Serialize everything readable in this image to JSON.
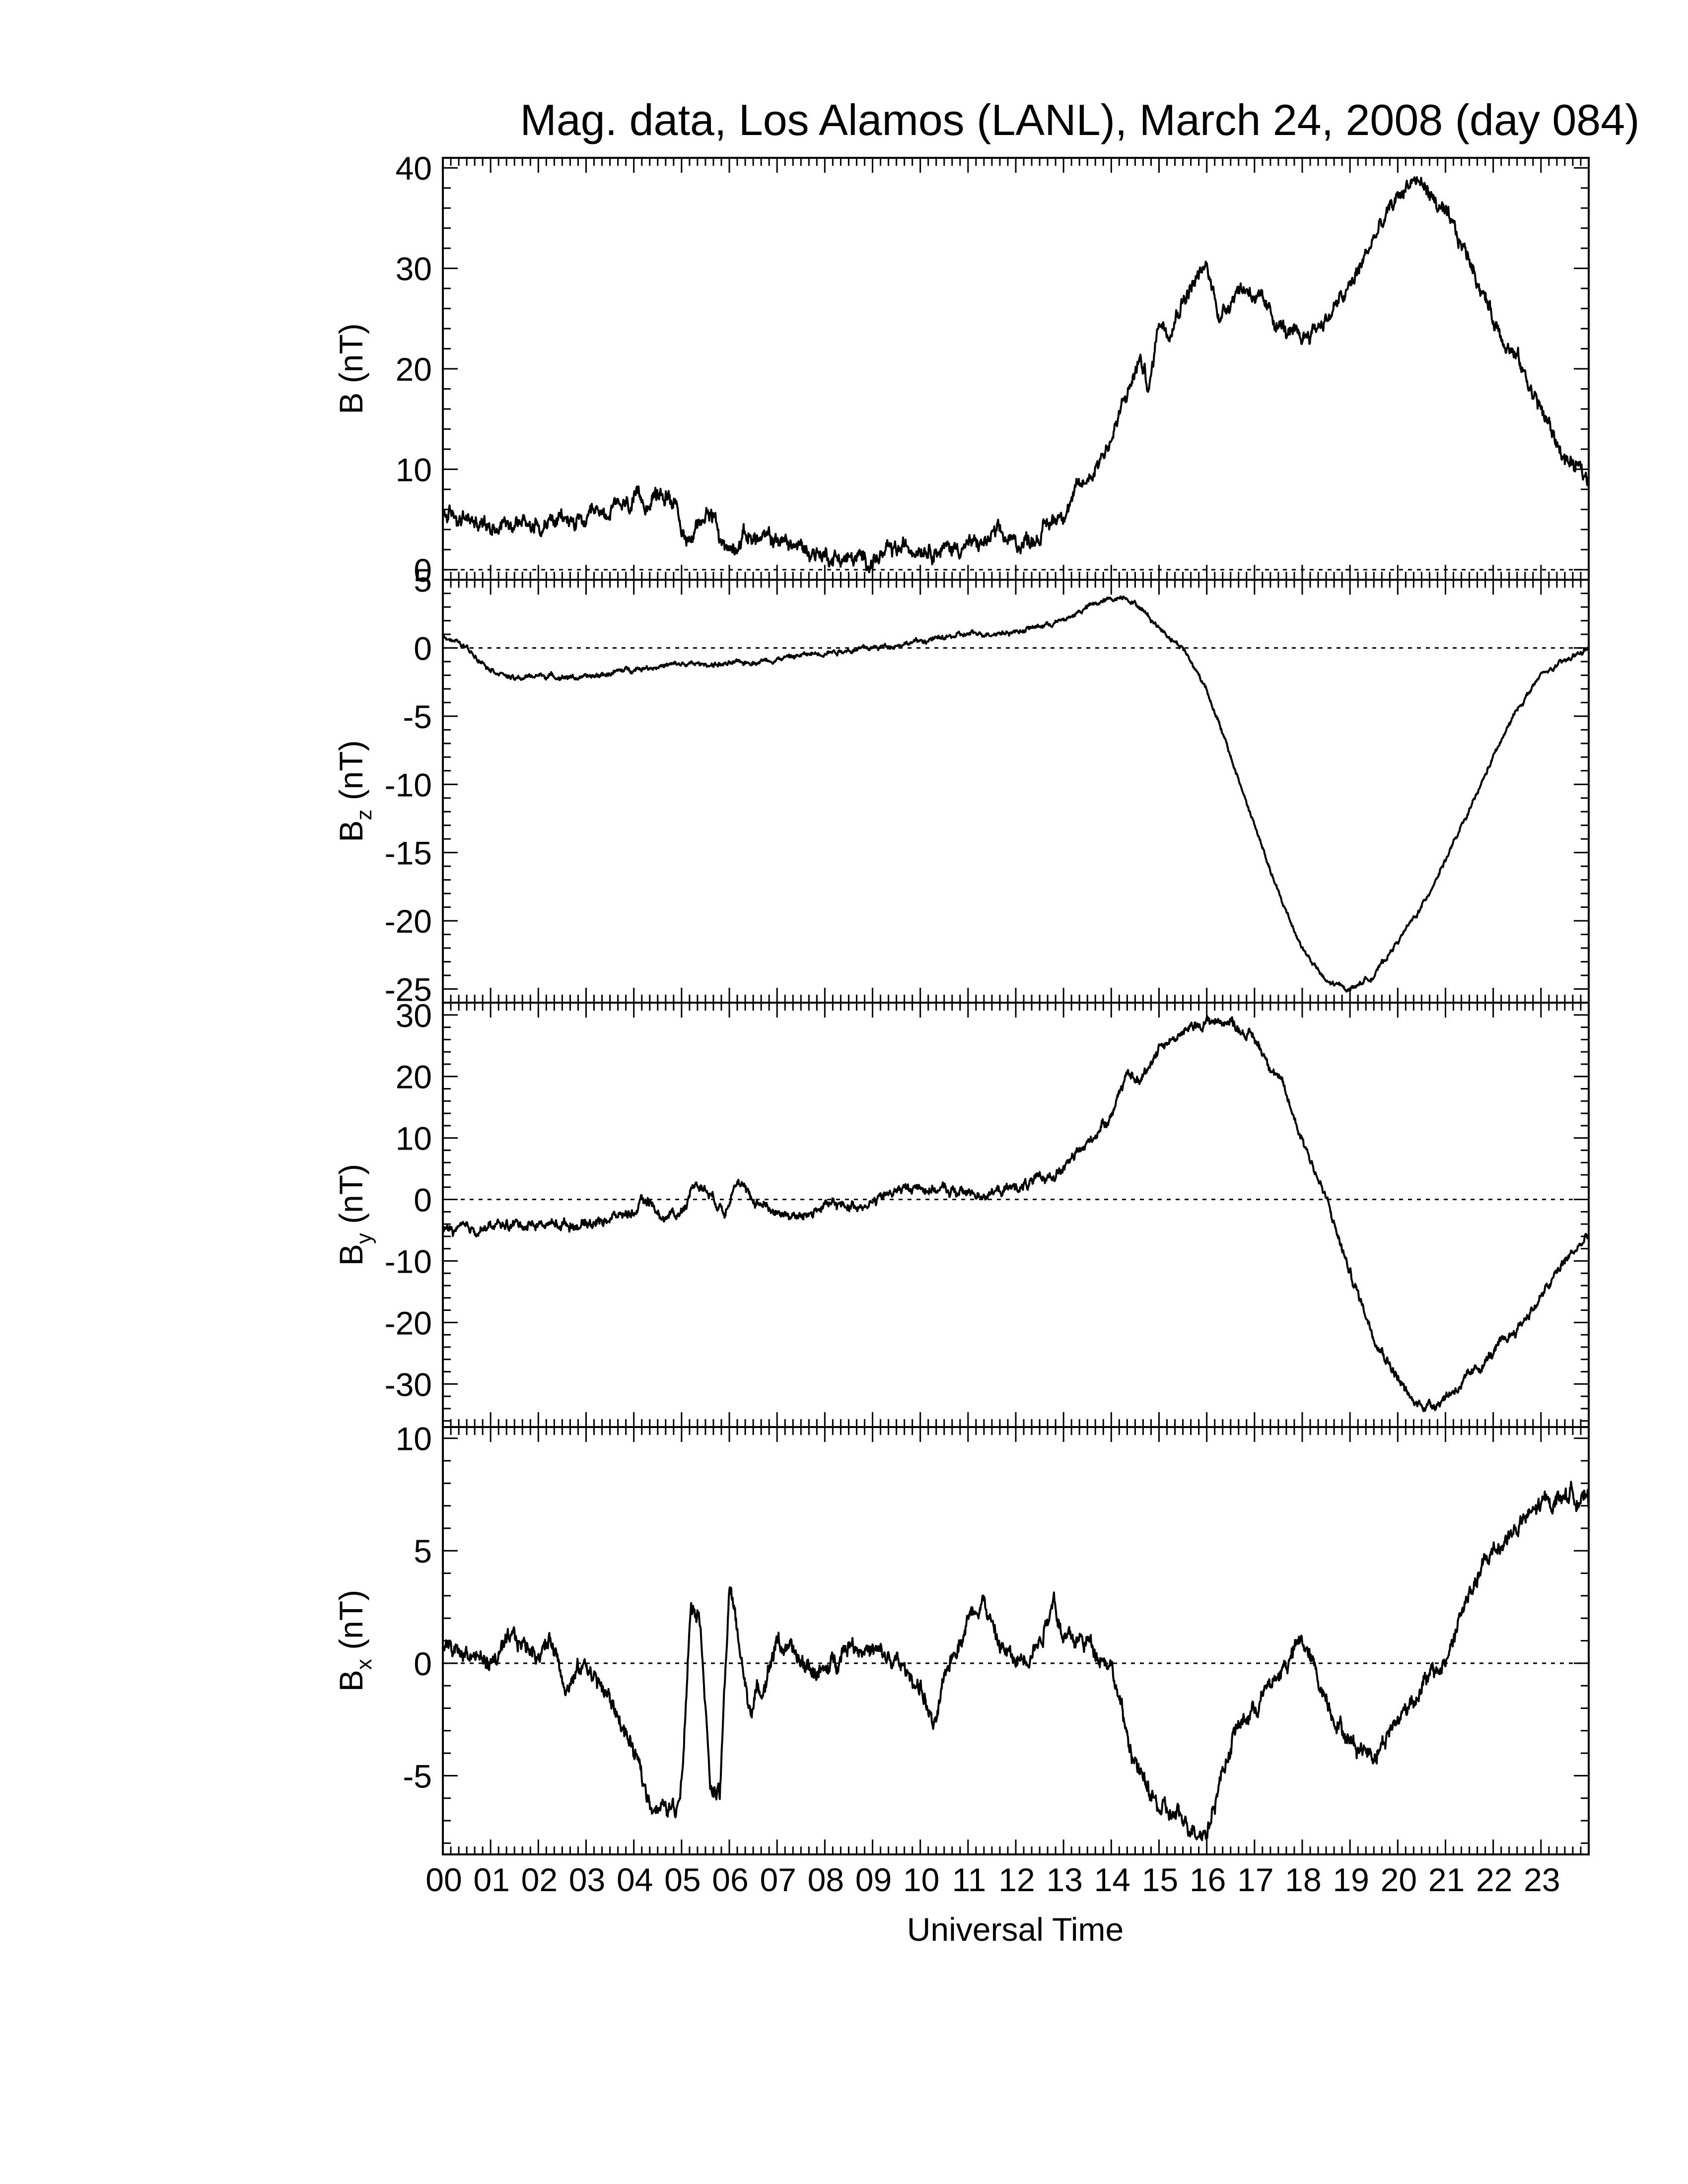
{
  "title": "Mag. data, Los Alamos (LANL), March 24, 2008 (day 084)",
  "xlabel": "Universal Time",
  "colors": {
    "line": "#000000",
    "zero_line": "#000000",
    "background": "#ffffff"
  },
  "chart_data": [
    {
      "type": "line",
      "ylabel": "B (nT)",
      "ylabel_base": "B",
      "ylabel_sub": "",
      "ylabel_units": " (nT)",
      "ylim": [
        -1,
        41
      ],
      "yticks": [
        0,
        10,
        20,
        30,
        40
      ],
      "zero_line": true,
      "noise": 0.9,
      "x_hours": [
        0,
        0.5,
        1,
        1.5,
        2,
        2.5,
        3,
        3.3,
        3.6,
        4,
        4.3,
        4.6,
        4.9,
        5.1,
        5.3,
        5.6,
        5.8,
        6,
        6.3,
        6.6,
        7,
        7.3,
        7.6,
        8,
        8.5,
        9,
        9.3,
        9.6,
        10,
        10.5,
        11,
        11.3,
        11.6,
        12,
        12.5,
        13,
        13.5,
        14,
        14.3,
        14.6,
        14.8,
        15,
        15.2,
        15.5,
        15.8,
        16,
        16.3,
        16.6,
        16.9,
        17.2,
        17.5,
        17.8,
        18,
        18.5,
        19,
        19.5,
        20,
        20.3,
        20.6,
        21,
        21.5,
        22,
        22.5,
        23,
        23.5,
        24
      ],
      "values": [
        5.5,
        5,
        4.5,
        5,
        4.5,
        5,
        4.5,
        5.5,
        6,
        6.5,
        7,
        7.5,
        7,
        2,
        4,
        6.5,
        3,
        2,
        3.5,
        3,
        3,
        2.5,
        2,
        1.5,
        1,
        1,
        1.5,
        2,
        2.5,
        2,
        2.5,
        2.5,
        3.5,
        2.5,
        3.5,
        6,
        9,
        13,
        17,
        21,
        18,
        25,
        24,
        27,
        29,
        30,
        25,
        28,
        28,
        26,
        24.5,
        23,
        23,
        25,
        28,
        33,
        37,
        39,
        38,
        35,
        31,
        25,
        21,
        16,
        11,
        9
      ]
    },
    {
      "type": "line",
      "ylabel": "Bz (nT)",
      "ylabel_base": "B",
      "ylabel_sub": "z",
      "ylabel_units": " (nT)",
      "ylim": [
        -26,
        5
      ],
      "yticks": [
        5,
        0,
        -5,
        -10,
        -15,
        -20,
        -25
      ],
      "zero_line": true,
      "noise": 0.2,
      "x_hours": [
        0,
        0.5,
        1,
        1.5,
        2,
        3,
        4,
        5,
        6,
        7,
        8,
        9,
        10,
        11,
        12,
        13,
        13.5,
        14,
        14.3,
        14.6,
        15,
        15.5,
        16,
        16.5,
        17,
        17.5,
        18,
        18.5,
        19,
        19.5,
        20,
        20.5,
        21,
        21.5,
        22,
        22.5,
        23,
        23.5,
        24
      ],
      "values": [
        1,
        0,
        -1.5,
        -2.3,
        -2,
        -2.2,
        -1.5,
        -1.2,
        -1.2,
        -0.8,
        -0.3,
        0,
        0.5,
        1,
        1.2,
        2,
        3,
        3.6,
        3.8,
        3,
        1.5,
        0,
        -3,
        -8,
        -13,
        -18,
        -22,
        -24.5,
        -25,
        -24,
        -21.5,
        -19,
        -15.5,
        -12,
        -8,
        -4.5,
        -2,
        -1,
        0
      ]
    },
    {
      "type": "line",
      "ylabel": "By (nT)",
      "ylabel_base": "B",
      "ylabel_sub": "y",
      "ylabel_units": " (nT)",
      "ylim": [
        -37,
        32
      ],
      "yticks": [
        30,
        20,
        10,
        0,
        -10,
        -20,
        -30
      ],
      "zero_line": true,
      "noise": 0.9,
      "x_hours": [
        0,
        0.5,
        1,
        1.5,
        2,
        2.5,
        3,
        3.5,
        4,
        4.3,
        4.6,
        5,
        5.3,
        5.6,
        5.9,
        6.1,
        6.5,
        7,
        7.5,
        8,
        8.5,
        9,
        9.5,
        10,
        10.5,
        11,
        11.5,
        12,
        12.5,
        13,
        13.5,
        14,
        14.3,
        14.6,
        15,
        15.5,
        16,
        16.5,
        17,
        17.5,
        18,
        18.5,
        19,
        19.5,
        20,
        20.3,
        20.7,
        21,
        21.5,
        22,
        22.5,
        23,
        23.5,
        24
      ],
      "values": [
        -5,
        -5,
        -4.5,
        -4,
        -4,
        -4,
        -4,
        -3,
        -2,
        0,
        -3,
        -2,
        3,
        1,
        -2,
        3,
        0,
        -2,
        -3,
        -1,
        -1,
        -0.5,
        1.5,
        2,
        1.5,
        1,
        1,
        2,
        3,
        5,
        9,
        14,
        20,
        19,
        25,
        27,
        29,
        29,
        26,
        20,
        10,
        0,
        -12,
        -22,
        -29,
        -33,
        -33.5,
        -32,
        -29,
        -25,
        -21,
        -16,
        -10,
        -6
      ]
    },
    {
      "type": "line",
      "ylabel": "Bx (nT)",
      "ylabel_base": "B",
      "ylabel_sub": "x",
      "ylabel_units": " (nT)",
      "ylim": [
        -8.5,
        10.5
      ],
      "yticks": [
        10,
        5,
        0,
        -5
      ],
      "zero_line": true,
      "noise": 0.45,
      "x_hours": [
        0,
        0.5,
        1,
        1.5,
        2,
        2.3,
        2.6,
        3,
        3.3,
        3.6,
        4,
        4.3,
        4.6,
        4.9,
        5,
        5.2,
        5.4,
        5.6,
        5.8,
        6,
        6.2,
        6.4,
        6.7,
        7,
        7.5,
        8,
        8.5,
        9,
        9.5,
        10,
        10.3,
        10.6,
        11,
        11.3,
        11.6,
        12,
        12.5,
        12.8,
        13,
        13.5,
        14,
        14.3,
        14.6,
        15,
        15.5,
        16,
        16.3,
        16.6,
        17,
        17.5,
        18,
        18.3,
        18.6,
        19,
        19.5,
        20,
        20.5,
        21,
        21.3,
        21.6,
        22,
        22.5,
        23,
        23.5,
        23.8,
        24
      ],
      "values": [
        0.5,
        0.5,
        0,
        1,
        0.5,
        1,
        -1,
        0,
        -1,
        -2,
        -4,
        -6,
        -6.5,
        -6.5,
        -5,
        3,
        2,
        -5.5,
        -6,
        3.5,
        1,
        -2,
        -1,
        1,
        0,
        -0.5,
        1,
        0.5,
        0,
        -1,
        -3,
        0,
        2,
        3,
        1,
        0,
        1,
        3,
        1,
        1,
        0,
        -3,
        -5,
        -6.5,
        -7,
        -7.5,
        -5,
        -3,
        -2,
        -0.5,
        1,
        -0.5,
        -2,
        -3.5,
        -4,
        -2.5,
        -1,
        0,
        2,
        3.5,
        5,
        6,
        7,
        7.5,
        7.5,
        7
      ]
    }
  ],
  "x_tick_labels": [
    "00",
    "01",
    "02",
    "03",
    "04",
    "05",
    "06",
    "07",
    "08",
    "09",
    "10",
    "11",
    "12",
    "13",
    "14",
    "15",
    "16",
    "17",
    "18",
    "19",
    "20",
    "21",
    "22",
    "23"
  ]
}
